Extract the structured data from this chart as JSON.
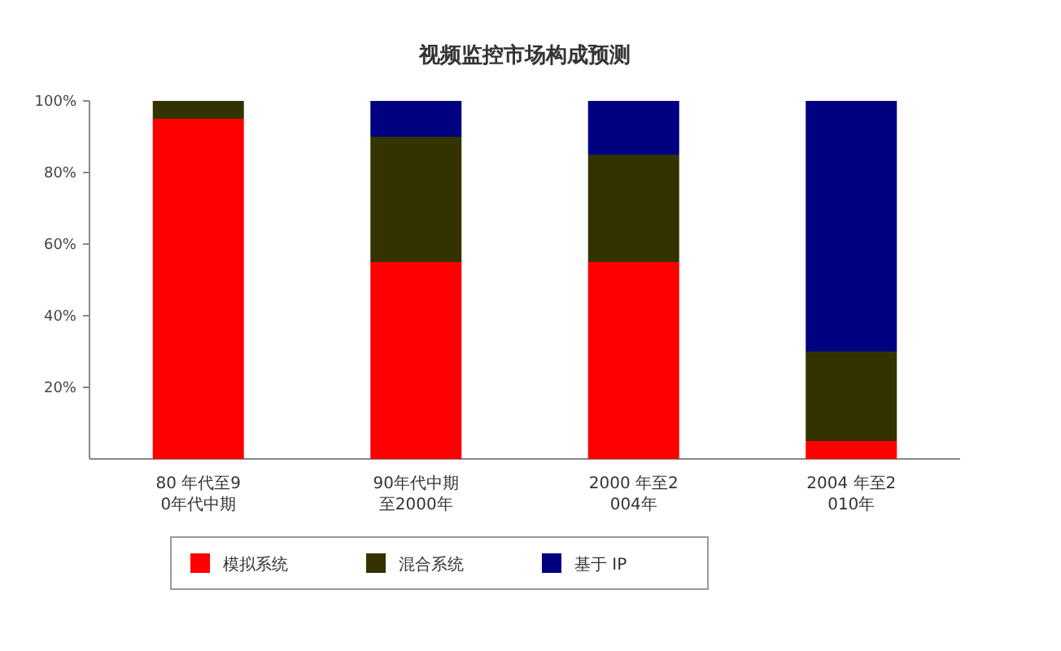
{
  "chart_data": {
    "type": "bar",
    "stacked": true,
    "title": "视频监控市场构成预测",
    "categories": [
      "80 年代至90年代中期",
      "90年代中期至2000年",
      "2000 年至2004年",
      "2004 年至2010年"
    ],
    "series": [
      {
        "name": "模拟系统",
        "color": "#ff0000",
        "values": [
          95,
          55,
          55,
          5
        ]
      },
      {
        "name": "混合系统",
        "color": "#333300",
        "values": [
          5,
          35,
          30,
          25
        ]
      },
      {
        "name": "基于 IP",
        "color": "#000080",
        "values": [
          0,
          10,
          15,
          70
        ]
      }
    ],
    "ylim": [
      0,
      100
    ],
    "yticks": [
      {
        "value": 20,
        "label": "20%"
      },
      {
        "value": 40,
        "label": "40%"
      },
      {
        "value": 60,
        "label": "60%"
      },
      {
        "value": 80,
        "label": "80%"
      },
      {
        "value": 100,
        "label": "100%"
      }
    ],
    "legend": "bottom",
    "grid": false
  }
}
